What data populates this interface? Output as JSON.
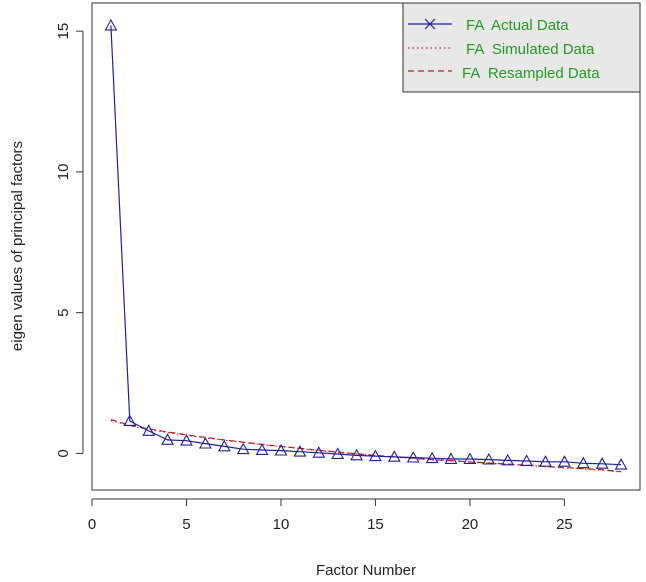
{
  "chart_data": {
    "type": "line",
    "title": "",
    "xlabel": "Factor Number",
    "ylabel": "eigen values of principal factors",
    "xlim": [
      0,
      29
    ],
    "ylim": [
      -1.3,
      16
    ],
    "x_ticks": [
      0,
      5,
      10,
      15,
      20,
      25
    ],
    "y_ticks": [
      0,
      5,
      10,
      15
    ],
    "grid": false,
    "legend_position": "top-right",
    "colors": {
      "actual": "#1f1f9e",
      "simulated": "#d11a1a",
      "resampled": "#c21a2a",
      "legend_text": "#229922",
      "legend_bg": "#e8e8e8"
    },
    "series": [
      {
        "name": "FA  Actual Data",
        "line_style": "solid",
        "marker": "triangle",
        "x": [
          1,
          2,
          3,
          4,
          5,
          6,
          7,
          8,
          9,
          10,
          11,
          12,
          13,
          14,
          15,
          16,
          17,
          18,
          19,
          20,
          21,
          22,
          23,
          24,
          25,
          26,
          27,
          28
        ],
        "values": [
          15.2,
          1.15,
          0.8,
          0.48,
          0.45,
          0.35,
          0.25,
          0.15,
          0.12,
          0.1,
          0.06,
          0.02,
          -0.02,
          -0.07,
          -0.1,
          -0.12,
          -0.15,
          -0.17,
          -0.2,
          -0.2,
          -0.22,
          -0.25,
          -0.27,
          -0.3,
          -0.3,
          -0.35,
          -0.37,
          -0.4
        ]
      },
      {
        "name": "FA  Simulated Data",
        "line_style": "dotted",
        "x": [
          1,
          2,
          3,
          4,
          5,
          6,
          7,
          8,
          9,
          10,
          11,
          12,
          13,
          14,
          15,
          16,
          17,
          18,
          19,
          20,
          21,
          22,
          23,
          24,
          25,
          26,
          27,
          28
        ],
        "values": [
          1.17,
          0.98,
          0.85,
          0.74,
          0.64,
          0.55,
          0.47,
          0.39,
          0.31,
          0.24,
          0.17,
          0.1,
          0.04,
          -0.02,
          -0.08,
          -0.13,
          -0.18,
          -0.23,
          -0.27,
          -0.31,
          -0.35,
          -0.39,
          -0.43,
          -0.47,
          -0.51,
          -0.55,
          -0.59,
          -0.66
        ]
      },
      {
        "name": "FA  Resampled Data",
        "line_style": "dashed",
        "x": [
          1,
          2,
          3,
          4,
          5,
          6,
          7,
          8,
          9,
          10,
          11,
          12,
          13,
          14,
          15,
          16,
          17,
          18,
          19,
          20,
          21,
          22,
          23,
          24,
          25,
          26,
          27,
          28
        ],
        "values": [
          1.2,
          1.0,
          0.87,
          0.76,
          0.66,
          0.57,
          0.48,
          0.4,
          0.32,
          0.25,
          0.18,
          0.11,
          0.05,
          -0.01,
          -0.07,
          -0.12,
          -0.17,
          -0.22,
          -0.26,
          -0.3,
          -0.34,
          -0.38,
          -0.42,
          -0.46,
          -0.5,
          -0.54,
          -0.58,
          -0.65
        ]
      }
    ]
  }
}
